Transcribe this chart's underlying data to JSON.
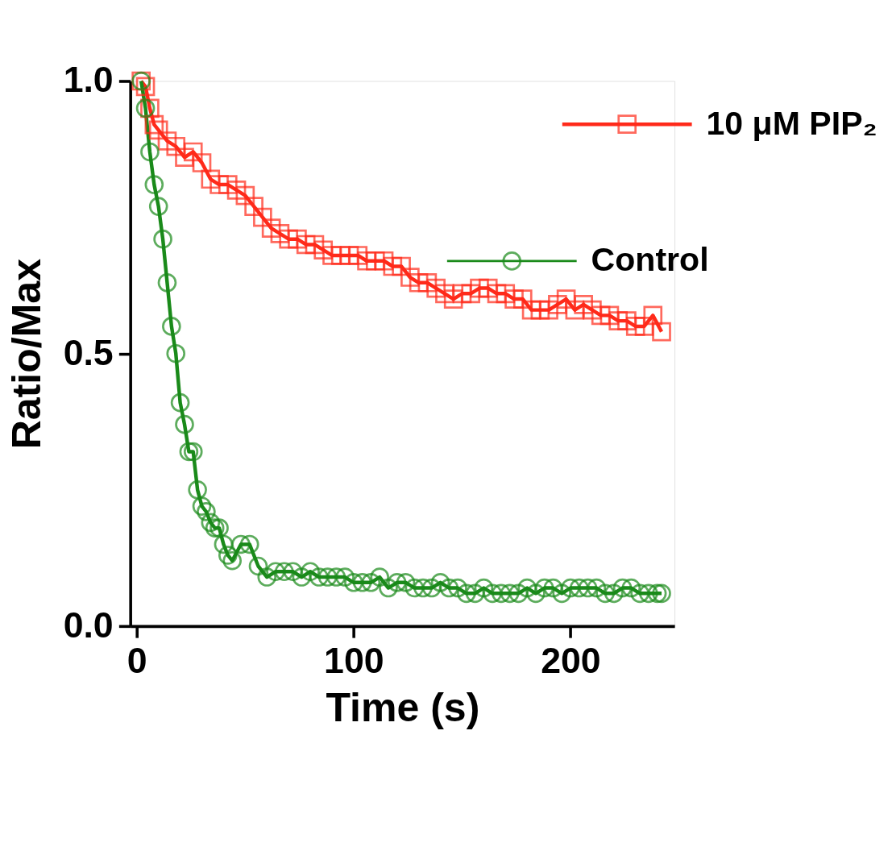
{
  "chart_data": {
    "type": "line",
    "xlabel": "Time (s)",
    "ylabel": "Ratio/Max",
    "xlim": [
      -3,
      248
    ],
    "ylim": [
      0,
      1.0
    ],
    "xticks": [
      0,
      100,
      200
    ],
    "yticks": [
      {
        "value": 0,
        "label": "0.0"
      },
      {
        "value": 0.5,
        "label": "0.5"
      },
      {
        "value": 1.0,
        "label": "1.0"
      }
    ],
    "grid": false,
    "legend": "top right",
    "line_style": "solid",
    "series": [
      {
        "name": "10 μM PIP₂",
        "color": "#ff2a1a",
        "marker": "square",
        "x": [
          2,
          4,
          6,
          8,
          10,
          14,
          18,
          22,
          26,
          30,
          34,
          38,
          42,
          46,
          50,
          54,
          58,
          62,
          66,
          70,
          74,
          78,
          82,
          86,
          90,
          94,
          98,
          102,
          106,
          110,
          114,
          118,
          122,
          126,
          130,
          134,
          138,
          142,
          146,
          150,
          154,
          158,
          162,
          166,
          170,
          174,
          178,
          182,
          186,
          190,
          194,
          198,
          202,
          206,
          210,
          214,
          218,
          222,
          226,
          230,
          234,
          238,
          242
        ],
        "values": [
          1.0,
          0.99,
          0.95,
          0.92,
          0.91,
          0.89,
          0.88,
          0.86,
          0.87,
          0.85,
          0.82,
          0.81,
          0.81,
          0.8,
          0.79,
          0.77,
          0.75,
          0.73,
          0.72,
          0.71,
          0.71,
          0.7,
          0.7,
          0.69,
          0.68,
          0.68,
          0.68,
          0.68,
          0.67,
          0.67,
          0.67,
          0.66,
          0.66,
          0.64,
          0.63,
          0.63,
          0.62,
          0.61,
          0.6,
          0.61,
          0.61,
          0.62,
          0.62,
          0.61,
          0.61,
          0.6,
          0.6,
          0.58,
          0.58,
          0.58,
          0.59,
          0.6,
          0.58,
          0.59,
          0.58,
          0.57,
          0.57,
          0.56,
          0.56,
          0.55,
          0.55,
          0.57,
          0.54
        ]
      },
      {
        "name": "Control",
        "color": "#1a8a1a",
        "marker": "circle",
        "x": [
          2,
          4,
          6,
          8,
          10,
          12,
          14,
          16,
          18,
          20,
          22,
          24,
          26,
          28,
          30,
          32,
          34,
          36,
          38,
          40,
          42,
          44,
          48,
          52,
          56,
          60,
          64,
          68,
          72,
          76,
          80,
          84,
          88,
          92,
          96,
          100,
          104,
          108,
          112,
          116,
          120,
          124,
          128,
          132,
          136,
          140,
          144,
          148,
          152,
          156,
          160,
          164,
          168,
          172,
          176,
          180,
          184,
          188,
          192,
          196,
          200,
          204,
          208,
          212,
          216,
          220,
          224,
          228,
          232,
          236,
          240,
          242
        ],
        "values": [
          1.0,
          0.95,
          0.87,
          0.81,
          0.77,
          0.71,
          0.63,
          0.55,
          0.5,
          0.41,
          0.37,
          0.32,
          0.32,
          0.25,
          0.22,
          0.21,
          0.19,
          0.18,
          0.18,
          0.15,
          0.13,
          0.12,
          0.15,
          0.15,
          0.11,
          0.09,
          0.1,
          0.1,
          0.1,
          0.09,
          0.1,
          0.09,
          0.09,
          0.09,
          0.09,
          0.08,
          0.08,
          0.08,
          0.09,
          0.07,
          0.08,
          0.08,
          0.07,
          0.07,
          0.07,
          0.08,
          0.07,
          0.07,
          0.06,
          0.06,
          0.07,
          0.06,
          0.06,
          0.06,
          0.06,
          0.07,
          0.06,
          0.07,
          0.07,
          0.06,
          0.07,
          0.07,
          0.07,
          0.07,
          0.06,
          0.06,
          0.07,
          0.07,
          0.06,
          0.06,
          0.06,
          0.06
        ]
      }
    ]
  }
}
